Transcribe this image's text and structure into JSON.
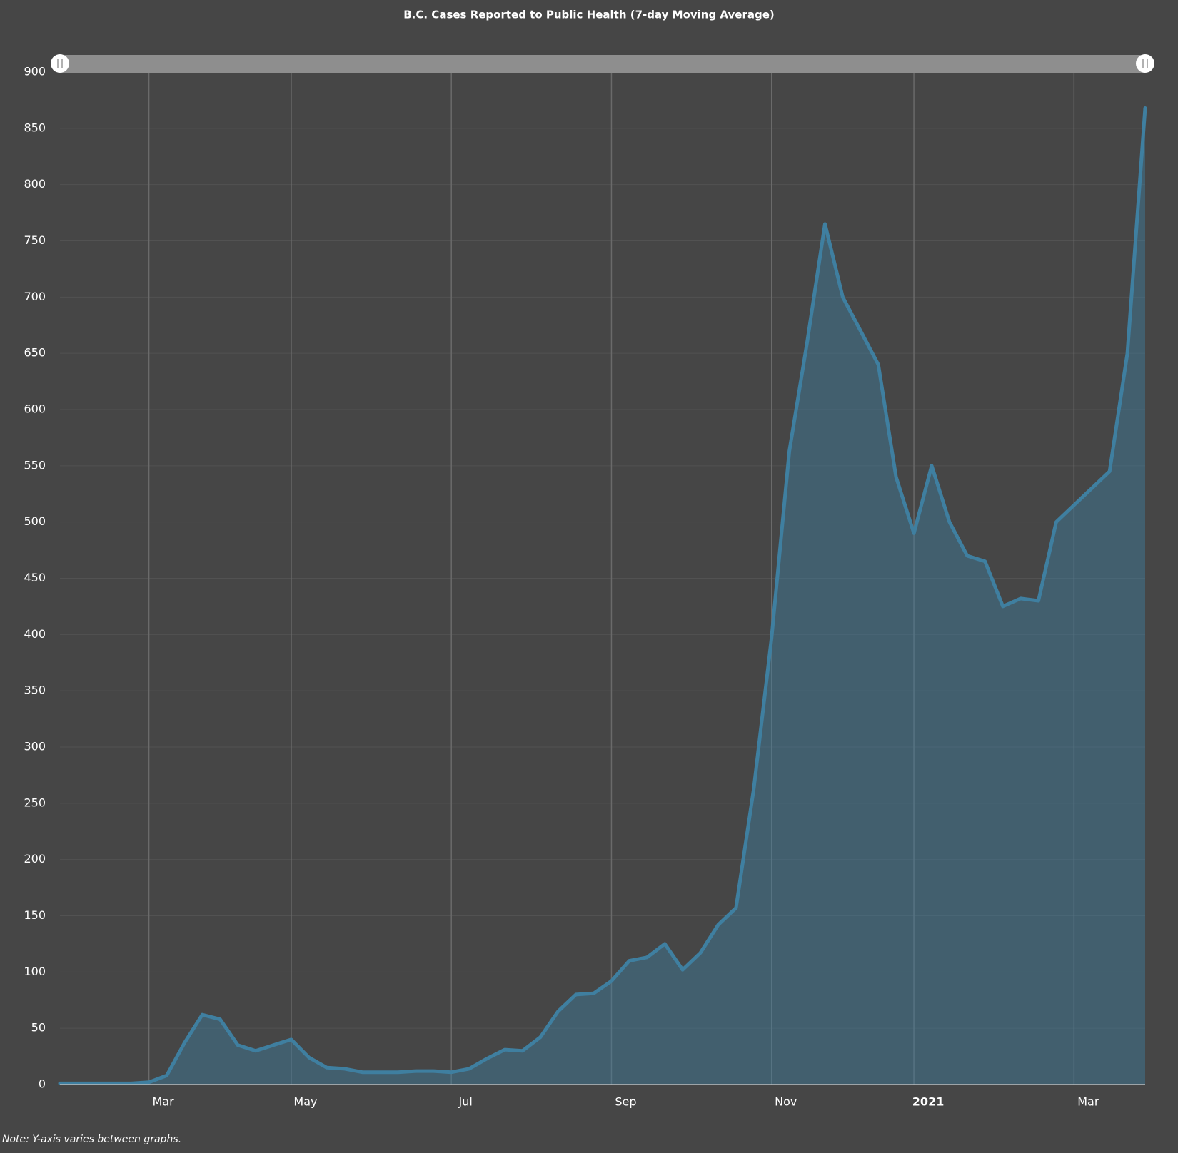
{
  "chart_data": {
    "type": "area",
    "title": "B.C. Cases Reported to Public Health (7-day Moving Average)",
    "note": "Note: Y-axis varies between graphs.",
    "categories": [
      null,
      null,
      null,
      null,
      null,
      "Mar",
      null,
      null,
      null,
      null,
      null,
      null,
      null,
      "May",
      null,
      null,
      null,
      null,
      null,
      null,
      null,
      null,
      "Jul",
      null,
      null,
      null,
      null,
      null,
      null,
      null,
      null,
      "Sep",
      null,
      null,
      null,
      null,
      null,
      null,
      null,
      null,
      "Nov",
      null,
      null,
      null,
      null,
      null,
      null,
      null,
      "2021",
      null,
      null,
      null,
      null,
      null,
      null,
      null,
      null,
      "Mar",
      null,
      null,
      null,
      null
    ],
    "values": [
      1,
      1,
      1,
      1,
      1,
      2,
      8,
      37,
      62,
      58,
      35,
      30,
      35,
      40,
      24,
      15,
      14,
      11,
      11,
      11,
      12,
      12,
      11,
      14,
      23,
      31,
      30,
      42,
      65,
      80,
      81,
      92,
      110,
      113,
      125,
      102,
      117,
      142,
      157,
      263,
      397,
      563,
      660,
      765,
      700,
      670,
      640,
      540,
      490,
      550,
      500,
      470,
      465,
      425,
      432,
      430,
      500,
      515,
      530,
      545,
      650,
      868
    ],
    "color": "#3f7fa0",
    "ylim": [
      0,
      900
    ],
    "yticks": [
      0,
      50,
      100,
      150,
      200,
      250,
      300,
      350,
      400,
      450,
      500,
      550,
      600,
      650,
      700,
      750,
      800,
      850,
      900
    ],
    "grid": true
  }
}
